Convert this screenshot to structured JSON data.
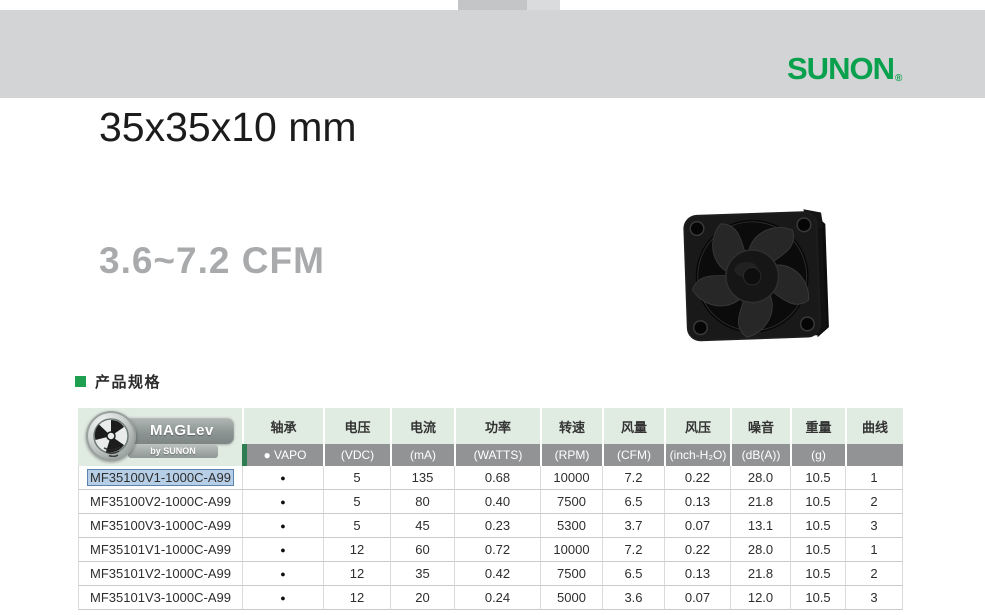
{
  "header": {
    "brand": "SUNON",
    "registered_mark": "®"
  },
  "product": {
    "size_title": "35x35x10 mm",
    "airflow_range": "3.6~7.2 CFM"
  },
  "section": {
    "title": "产品规格"
  },
  "logo_badge": {
    "name": "MAGLev",
    "byline": "by SUNON"
  },
  "spec_table": {
    "columns": [
      "轴承",
      "电压",
      "电流",
      "功率",
      "转速",
      "风量",
      "风压",
      "噪音",
      "重量",
      "曲线"
    ],
    "units": [
      "● VAPO",
      "(VDC)",
      "(mA)",
      "(WATTS)",
      "(RPM)",
      "(CFM)",
      "(inch-H₂O)",
      "(dB(A))",
      "(g)",
      ""
    ],
    "rows": [
      {
        "model": "MF35100V1-1000C-A99",
        "selected": true,
        "bearing": "●",
        "voltage": "5",
        "current": "135",
        "power": "0.68",
        "speed": "10000",
        "airflow": "7.2",
        "pressure": "0.22",
        "noise": "28.0",
        "weight": "10.5",
        "curve": "1"
      },
      {
        "model": "MF35100V2-1000C-A99",
        "selected": false,
        "bearing": "●",
        "voltage": "5",
        "current": "80",
        "power": "0.40",
        "speed": "7500",
        "airflow": "6.5",
        "pressure": "0.13",
        "noise": "21.8",
        "weight": "10.5",
        "curve": "2"
      },
      {
        "model": "MF35100V3-1000C-A99",
        "selected": false,
        "bearing": "●",
        "voltage": "5",
        "current": "45",
        "power": "0.23",
        "speed": "5300",
        "airflow": "3.7",
        "pressure": "0.07",
        "noise": "13.1",
        "weight": "10.5",
        "curve": "3"
      },
      {
        "model": "MF35101V1-1000C-A99",
        "selected": false,
        "bearing": "●",
        "voltage": "12",
        "current": "60",
        "power": "0.72",
        "speed": "10000",
        "airflow": "7.2",
        "pressure": "0.22",
        "noise": "28.0",
        "weight": "10.5",
        "curve": "1"
      },
      {
        "model": "MF35101V2-1000C-A99",
        "selected": false,
        "bearing": "●",
        "voltage": "12",
        "current": "35",
        "power": "0.42",
        "speed": "7500",
        "airflow": "6.5",
        "pressure": "0.13",
        "noise": "21.8",
        "weight": "10.5",
        "curve": "2"
      },
      {
        "model": "MF35101V3-1000C-A99",
        "selected": false,
        "bearing": "●",
        "voltage": "12",
        "current": "20",
        "power": "0.24",
        "speed": "5000",
        "airflow": "3.6",
        "pressure": "0.07",
        "noise": "12.0",
        "weight": "10.5",
        "curve": "3"
      }
    ]
  },
  "colors": {
    "brand_green": "#0aa14e",
    "section_green": "#1ea050",
    "header_bg": "#e0ebe2",
    "subheader_bg": "#919395",
    "subheader_accent": "#2e7d50",
    "selection_bg": "#b7cee7",
    "selection_border": "#5b83ad",
    "band_gray": "#d3d4d5",
    "band_tab": "#c4c5c7"
  }
}
